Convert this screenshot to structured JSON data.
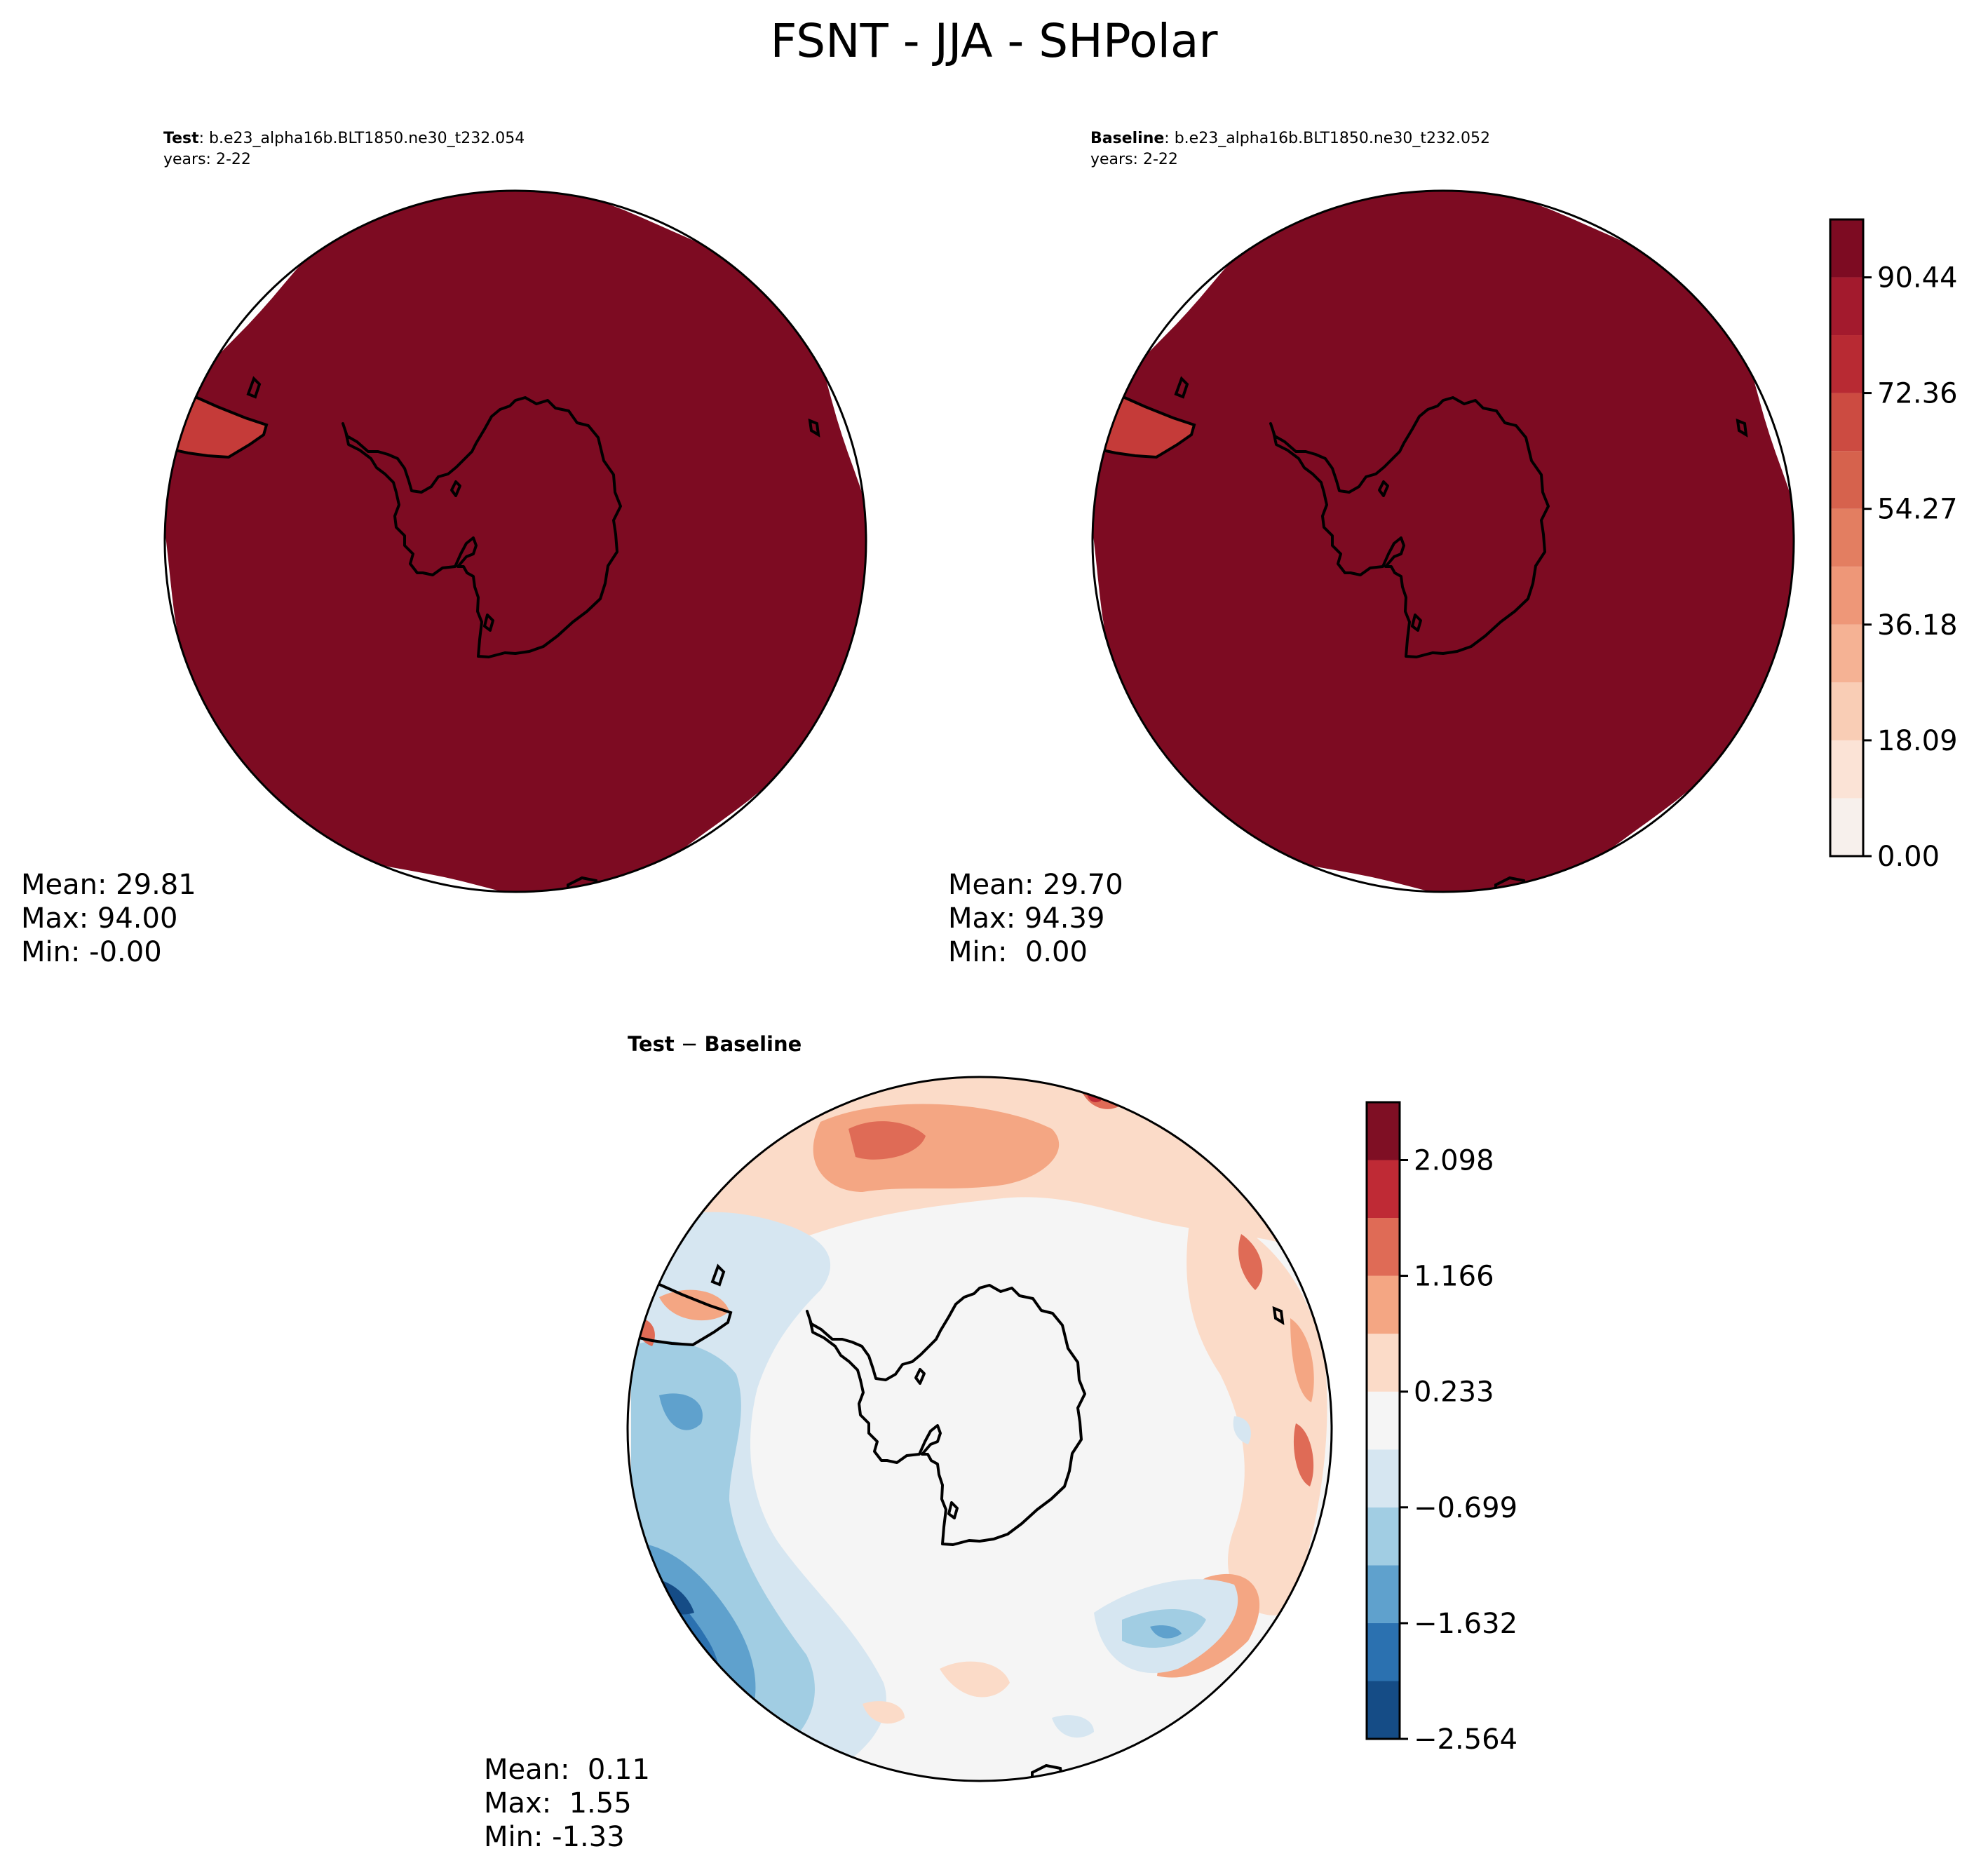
{
  "figure": {
    "title": "FSNT - JJA - SHPolar"
  },
  "panels": {
    "test": {
      "label": "Test",
      "case": ": b.e23_alpha16b.BLT1850.ne30_t232.054",
      "years": "years: 2-22",
      "stats": {
        "mean": "Mean: 29.81",
        "max": "Max: 94.00",
        "min": "Min: -0.00"
      }
    },
    "baseline": {
      "label": "Baseline",
      "case": ": b.e23_alpha16b.BLT1850.ne30_t232.052",
      "years": "years: 2-22",
      "stats": {
        "mean": "Mean: 29.70",
        "max": "Max: 94.39",
        "min": "Min:  0.00"
      }
    },
    "diff": {
      "label_a": "Test",
      "op": " − ",
      "label_b": "Baseline",
      "stats": {
        "mean": "Mean:  0.11",
        "max": "Max:  1.55",
        "min": "Min: -1.33"
      }
    }
  },
  "chart_data": [
    {
      "type": "heatmap",
      "name": "Test",
      "projection": "South Polar Stereographic",
      "variable": "FSNT",
      "season": "JJA",
      "colormap": "RdBu_r",
      "colorbar": {
        "levels": [
          0.0,
          9.045,
          18.09,
          27.135,
          36.18,
          45.225,
          54.27,
          63.315,
          72.36,
          81.405,
          90.44,
          99.485
        ],
        "tick_values": [
          0.0,
          18.09,
          36.18,
          54.27,
          72.36,
          90.44
        ],
        "tick_labels": [
          "0.00",
          "18.09",
          "36.18",
          "54.27",
          "72.36",
          "90.44"
        ],
        "colors": [
          "#f7f0ec",
          "#fbe3d6",
          "#f9cdb5",
          "#f5b294",
          "#ee9778",
          "#e37e61",
          "#d6624d",
          "#cc4b41",
          "#b82a33",
          "#a31a2d",
          "#7d0b22"
        ]
      },
      "mean": 29.81,
      "max": 94.0,
      "min": -0.0
    },
    {
      "type": "heatmap",
      "name": "Baseline",
      "projection": "South Polar Stereographic",
      "variable": "FSNT",
      "season": "JJA",
      "colormap": "RdBu_r",
      "mean": 29.7,
      "max": 94.39,
      "min": 0.0
    },
    {
      "type": "heatmap",
      "name": "Test − Baseline",
      "projection": "South Polar Stereographic",
      "colormap": "RdBu_r",
      "colorbar": {
        "levels": [
          -2.564,
          -2.098,
          -1.632,
          -1.166,
          -0.699,
          -0.233,
          0.233,
          0.699,
          1.166,
          1.632,
          2.098,
          2.564
        ],
        "tick_values": [
          -2.564,
          -1.632,
          -0.699,
          0.233,
          1.166,
          2.098
        ],
        "tick_labels": [
          "−2.564",
          "−1.632",
          "−0.699",
          "0.233",
          "1.166",
          "2.098"
        ],
        "colors": [
          "#154c86",
          "#2b71b0",
          "#5fa1cd",
          "#a1cde3",
          "#d6e6f1",
          "#f5f5f5",
          "#fbdbc8",
          "#f4a683",
          "#df6b56",
          "#bf2a35",
          "#7f0f24"
        ]
      },
      "mean": 0.11,
      "max": 1.55,
      "min": -1.33
    }
  ]
}
